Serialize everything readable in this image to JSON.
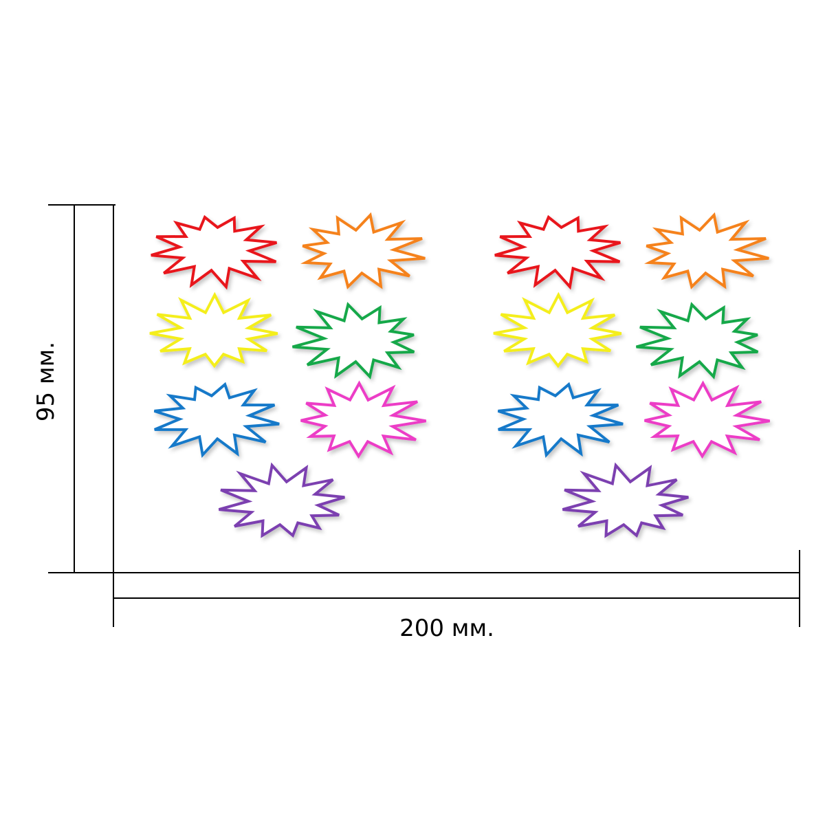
{
  "dimensions": {
    "width_label": "200 мм.",
    "height_label": "95 мм."
  },
  "sticker_sheet": {
    "groups": [
      {
        "name": "left-set",
        "stickers": [
          {
            "color_name": "red",
            "color": "#e8141b"
          },
          {
            "color_name": "orange",
            "color": "#f5821f"
          },
          {
            "color_name": "yellow",
            "color": "#f4ee1e"
          },
          {
            "color_name": "green",
            "color": "#12a84a"
          },
          {
            "color_name": "blue",
            "color": "#1479c9"
          },
          {
            "color_name": "pink",
            "color": "#ec3dc6"
          },
          {
            "color_name": "purple",
            "color": "#7b3fb0"
          }
        ]
      },
      {
        "name": "right-set",
        "stickers": [
          {
            "color_name": "red",
            "color": "#e8141b"
          },
          {
            "color_name": "orange",
            "color": "#f5821f"
          },
          {
            "color_name": "yellow",
            "color": "#f4ee1e"
          },
          {
            "color_name": "green",
            "color": "#12a84a"
          },
          {
            "color_name": "blue",
            "color": "#1479c9"
          },
          {
            "color_name": "pink",
            "color": "#ec3dc6"
          },
          {
            "color_name": "purple",
            "color": "#7b3fb0"
          }
        ]
      }
    ]
  }
}
